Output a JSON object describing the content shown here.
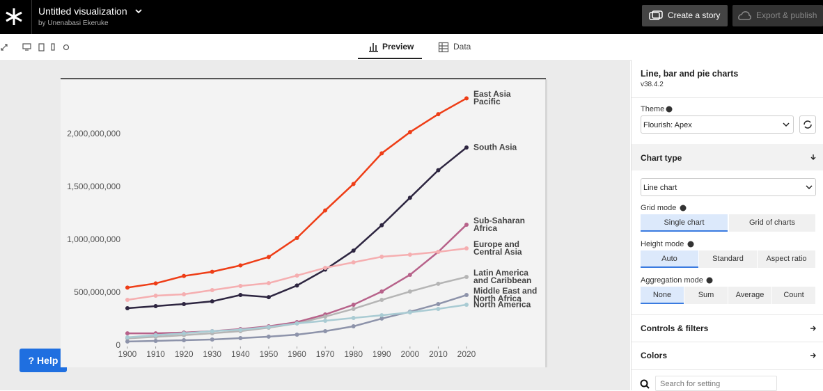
{
  "header": {
    "title": "Untitled visualization",
    "byline": "by Unenabasi Ekeruke",
    "buttons": [
      "Create a story",
      "Export & publish"
    ]
  },
  "tabs": [
    "Preview",
    "Data"
  ],
  "help_button": "? Help",
  "sidebar": {
    "template": "Line, bar and pie charts",
    "version": "v38.4.2",
    "theme_label": "Theme",
    "theme_value": "Flourish: Apex",
    "chart_type_section": "Chart type",
    "chart_type_value": "Line chart",
    "grid_mode": {
      "label": "Grid mode",
      "options": [
        "Single chart",
        "Grid of charts"
      ]
    },
    "height_mode": {
      "label": "Height mode",
      "options": [
        "Auto",
        "Standard",
        "Aspect ratio"
      ]
    },
    "aggregation_mode": {
      "label": "Aggregation mode",
      "options": [
        "None",
        "Sum",
        "Average",
        "Count"
      ]
    },
    "sections": [
      "Controls & filters",
      "Colors"
    ],
    "search_placeholder": "Search for setting"
  },
  "chart_data": {
    "type": "line",
    "x": [
      1900,
      1910,
      1920,
      1930,
      1940,
      1950,
      1960,
      1970,
      1980,
      1990,
      2000,
      2010,
      2020
    ],
    "xlim": [
      1900,
      2020
    ],
    "xticks": [
      1900,
      1910,
      1920,
      1930,
      1940,
      1950,
      1960,
      1970,
      1980,
      1990,
      2000,
      2010,
      2020
    ],
    "ylim": [
      0,
      2500000000
    ],
    "yticks": [
      0,
      {
        "value": 500000000,
        "label": "500,000,000"
      },
      {
        "value": 1000000000,
        "label": "1,000,000,000"
      },
      {
        "value": 1500000000,
        "label": "1,500,000,000"
      },
      {
        "value": 2000000000,
        "label": "2,000,000,000"
      }
    ],
    "grid": false,
    "series": [
      {
        "name": "East Asia Pacific",
        "color": "#ee3d16",
        "values": [
          550000000,
          590000000,
          660000000,
          700000000,
          760000000,
          840000000,
          1020000000,
          1280000000,
          1530000000,
          1820000000,
          2020000000,
          2190000000,
          2340000000
        ]
      },
      {
        "name": "South Asia",
        "color": "#2d2540",
        "values": [
          355000000,
          375000000,
          395000000,
          420000000,
          480000000,
          460000000,
          570000000,
          720000000,
          900000000,
          1140000000,
          1400000000,
          1660000000,
          1875000000
        ]
      },
      {
        "name": "Sub-Saharan Africa",
        "color": "#b7628a",
        "values": [
          118000000,
          118000000,
          125000000,
          138000000,
          158000000,
          184000000,
          224000000,
          296000000,
          388000000,
          513000000,
          671000000,
          888000000,
          1145000000
        ]
      },
      {
        "name": "Europe and Central Asia",
        "color": "#f5aeb0",
        "values": [
          434000000,
          474000000,
          487000000,
          526000000,
          566000000,
          592000000,
          664000000,
          737000000,
          789000000,
          842000000,
          862000000,
          888000000,
          921000000
        ]
      },
      {
        "name": "Latin America and Caribbean",
        "color": "#b5b5b5",
        "values": [
          70000000,
          85000000,
          100000000,
          118000000,
          138000000,
          171000000,
          211000000,
          276000000,
          349000000,
          434000000,
          513000000,
          586000000,
          651000000
        ]
      },
      {
        "name": "Middle East and North Africa",
        "color": "#8d93aa",
        "values": [
          40000000,
          46000000,
          53000000,
          59000000,
          72000000,
          86000000,
          105000000,
          138000000,
          184000000,
          257000000,
          322000000,
          395000000,
          480000000
        ]
      },
      {
        "name": "North America",
        "color": "#a9cbd3",
        "values": [
          80000000,
          100000000,
          118000000,
          138000000,
          151000000,
          178000000,
          211000000,
          237000000,
          263000000,
          289000000,
          316000000,
          349000000,
          388000000
        ]
      }
    ]
  }
}
